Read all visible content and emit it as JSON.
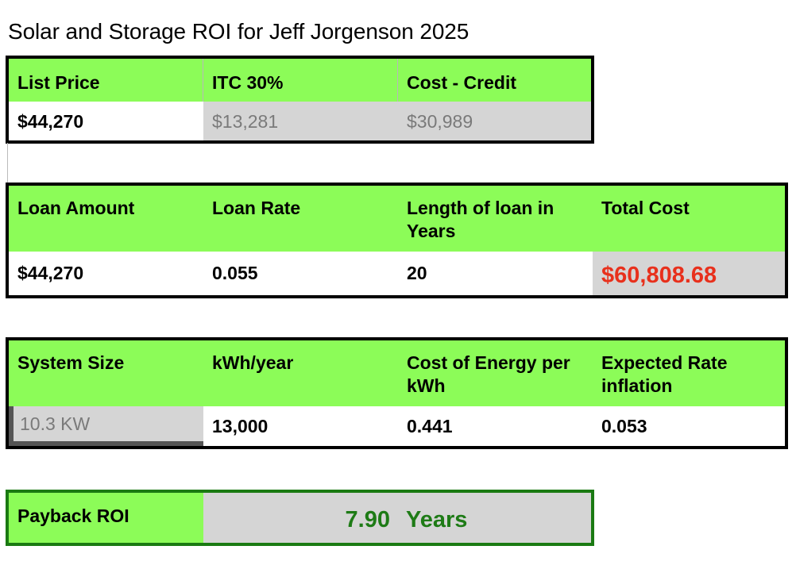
{
  "title": "Solar and Storage ROI for Jeff Jorgenson 2025",
  "price_table": {
    "headers": [
      "List Price",
      "ITC 30%",
      "Cost - Credit"
    ],
    "values": [
      "$44,270",
      "$13,281",
      "$30,989"
    ]
  },
  "loan_table": {
    "headers": [
      "Loan Amount",
      "Loan Rate",
      "Length of loan in Years",
      "Total Cost"
    ],
    "values": [
      "$44,270",
      "0.055",
      "20",
      "$60,808.68"
    ]
  },
  "system_table": {
    "headers": [
      "System Size",
      "kWh/year",
      "Cost of Energy per kWh",
      "Expected Rate inflation"
    ],
    "values": [
      "10.3 KW",
      "13,000",
      "0.441",
      "0.053"
    ]
  },
  "payback": {
    "label": "Payback ROI",
    "value": "7.90",
    "unit": "Years"
  },
  "colors": {
    "header_green": "#8cfc58",
    "cell_gray": "#d5d5d5",
    "total_red": "#e8301c",
    "roi_green": "#1e7b16"
  }
}
